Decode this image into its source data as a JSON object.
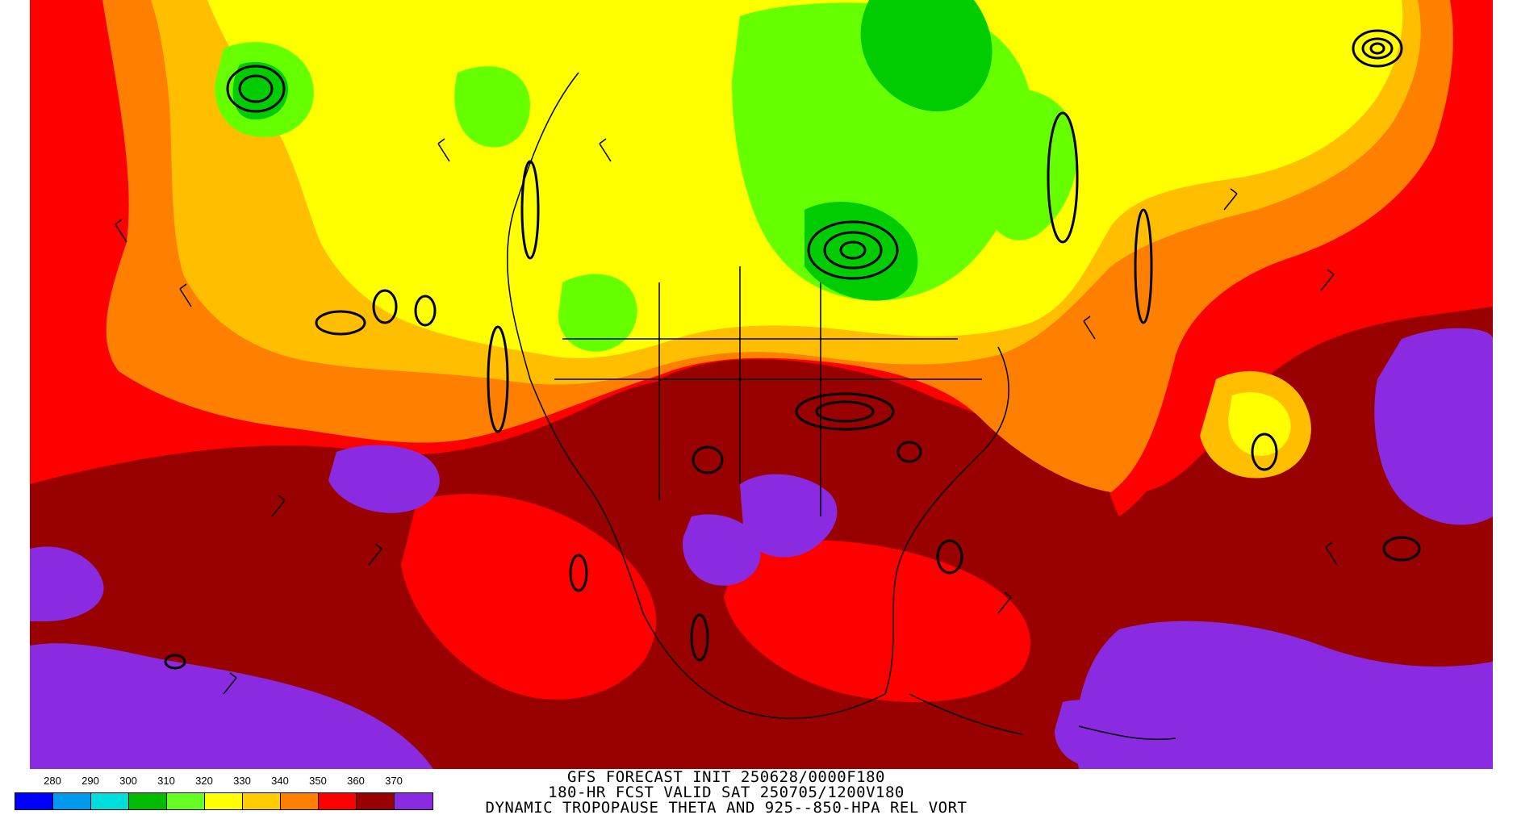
{
  "map": {
    "fill_colors": {
      "purple": "#8a2be2",
      "dark_red": "#990000",
      "red": "#ff0000",
      "orange": "#ff8000",
      "amber": "#ffbf00",
      "yellow": "#ffff00",
      "light_green": "#66ff00",
      "green": "#00cc00",
      "contour": "#000000"
    }
  },
  "legend": {
    "labels": [
      "280",
      "290",
      "300",
      "310",
      "320",
      "330",
      "340",
      "350",
      "360",
      "370"
    ],
    "colors": [
      "#0000ff",
      "#0099ee",
      "#00dddd",
      "#00bb00",
      "#66ff22",
      "#ffff00",
      "#ffcc00",
      "#ff8000",
      "#ff0000",
      "#990000",
      "#8a2be2"
    ]
  },
  "caption": {
    "line1": "GFS FORECAST INIT 250628/0000F180",
    "line2": "180-HR FCST VALID SAT 250705/1200V180",
    "line3": "DYNAMIC TROPOPAUSE THETA AND 925--850-HPA REL VORT"
  }
}
